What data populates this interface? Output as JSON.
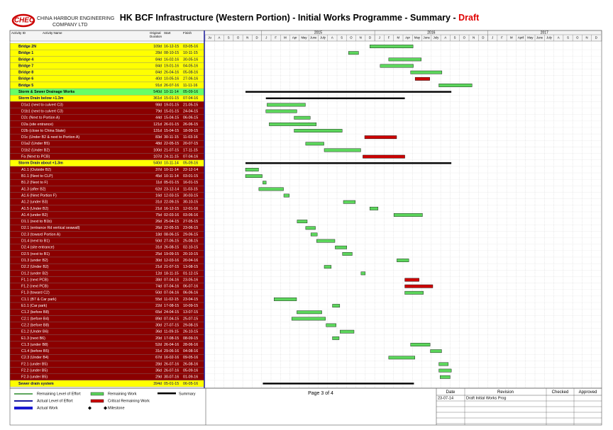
{
  "header": {
    "logo": "CHEC",
    "company_line1": "CHINA HARBOUR ENGINEERING",
    "company_line2": "COMPANY LTD",
    "title": "HK BCF Infrastructure (Western Portion) - Initial Works Programme - Summary - ",
    "status": "Draft"
  },
  "columns": {
    "id": "Activity ID",
    "name": "Activity Name",
    "duration_line1": "Original",
    "duration_line2": "Duration",
    "start": "Start",
    "finish": "Finish"
  },
  "timeline": {
    "years": [
      "2015",
      "2016",
      "2017"
    ],
    "months": [
      "Ju",
      "A",
      "S",
      "O",
      "N",
      "D",
      "J",
      "F",
      "M",
      "Apr",
      "May",
      "June",
      "July",
      "A",
      "S",
      "O",
      "N",
      "D",
      "J",
      "F",
      "M",
      "Apr",
      "May",
      "June",
      "July",
      "A",
      "S",
      "O",
      "N",
      "D",
      "J",
      "F",
      "M",
      "April",
      "May",
      "June",
      "July",
      "A",
      "S",
      "O",
      "N",
      "D"
    ]
  },
  "rows": [
    {
      "name": "Bridge 2N",
      "duration": "109d",
      "start": "16-12-15",
      "finish": "03-05-16",
      "fill": "#ffff00",
      "bar": "#5cd65c"
    },
    {
      "name": "Bridge 1",
      "duration": "28d",
      "start": "08-10-15",
      "finish": "10-11-15",
      "fill": "#ffff00",
      "bar": "#5cd65c"
    },
    {
      "name": "Bridge 4",
      "duration": "84d",
      "start": "16-02-16",
      "finish": "30-05-16",
      "fill": "#ffff00",
      "bar": "#5cd65c"
    },
    {
      "name": "Bridge 7",
      "duration": "84d",
      "start": "19-01-16",
      "finish": "04-05-16",
      "fill": "#ffff00",
      "bar": "#5cd65c"
    },
    {
      "name": "Bridge 8",
      "duration": "84d",
      "start": "26-04-16",
      "finish": "05-08-16",
      "fill": "#ffff00",
      "bar": "#5cd65c"
    },
    {
      "name": "Bridge 6",
      "duration": "40d",
      "start": "10-05-16",
      "finish": "27-06-16",
      "fill": "#ffff00",
      "bar": "#cc0000"
    },
    {
      "name": "Bridge 5",
      "duration": "91d",
      "start": "26-07-16",
      "finish": "11-11-16",
      "fill": "#ffff00",
      "bar": "#5cd65c"
    },
    {
      "name": "Storm & Sewer Drainage Works",
      "duration": "540d",
      "start": "10-11-14",
      "finish": "05-09-16",
      "fill": "#66ff66",
      "bar": "#000000"
    },
    {
      "name": "Storm Drain below +1.3m",
      "duration": "361d",
      "start": "15-01-15",
      "finish": "07-04-16",
      "fill": "#ffff00",
      "bar": "#000000"
    },
    {
      "name": "D1a1 (next to culvert C3)",
      "duration": "98d",
      "start": "19-01-15",
      "finish": "21-05-15",
      "fill": "#8b0000",
      "bar": "#5cd65c"
    },
    {
      "name": "D1b1 (next to culvert C3)",
      "duration": "79d",
      "start": "15-01-15",
      "finish": "24-04-15",
      "fill": "#8b0000",
      "bar": "#5cd65c"
    },
    {
      "name": "D2c (Next to Portion A)",
      "duration": "44d",
      "start": "15-04-15",
      "finish": "06-06-15",
      "fill": "#8b0000",
      "bar": "#5cd65c"
    },
    {
      "name": "D2a (site entrance)",
      "duration": "121d",
      "start": "26-01-15",
      "finish": "26-06-15",
      "fill": "#8b0000",
      "bar": "#5cd65c"
    },
    {
      "name": "D2b (close to China State)",
      "duration": "131d",
      "start": "15-04-15",
      "finish": "18-09-15",
      "fill": "#8b0000",
      "bar": "#5cd65c"
    },
    {
      "name": "D1c (Under B2 & next to Portion A)",
      "duration": "83d",
      "start": "30-11-15",
      "finish": "11-03-16",
      "fill": "#8b0000",
      "bar": "#cc0000"
    },
    {
      "name": "D1a2 (Under B5)",
      "duration": "48d",
      "start": "22-05-15",
      "finish": "20-07-15",
      "fill": "#8b0000",
      "bar": "#5cd65c"
    },
    {
      "name": "D1b2 (Under B2)",
      "duration": "100d",
      "start": "21-07-15",
      "finish": "17-11-15",
      "fill": "#8b0000",
      "bar": "#5cd65c"
    },
    {
      "name": "Fa (Next to PCB)",
      "duration": "107d",
      "start": "24-11-15",
      "finish": "07-04-16",
      "fill": "#8b0000",
      "bar": "#cc0000"
    },
    {
      "name": "Storm Drain about +1.3m",
      "duration": "540d",
      "start": "10-11-14",
      "finish": "05-09-16",
      "fill": "#ffff00",
      "bar": "#000000"
    },
    {
      "name": "A1.1 (Outside B2)",
      "duration": "37d",
      "start": "10-11-14",
      "finish": "22-12-14",
      "fill": "#8b0000",
      "bar": "#5cd65c"
    },
    {
      "name": "B1.1 (Next to CLP)",
      "duration": "45d",
      "start": "10-11-14",
      "finish": "03-01-15",
      "fill": "#8b0000",
      "bar": "#5cd65c"
    },
    {
      "name": "B1.2 (Next to F)",
      "duration": "11d",
      "start": "05-01-15",
      "finish": "16-01-15",
      "fill": "#8b0000",
      "bar": "#5cd65c"
    },
    {
      "name": "A1.3 (after B2)",
      "duration": "62d",
      "start": "23-12-14",
      "finish": "11-03-15",
      "fill": "#8b0000",
      "bar": "#5cd65c"
    },
    {
      "name": "A1.6 (Next Portion F)",
      "duration": "16d",
      "start": "12-03-15",
      "finish": "30-03-15",
      "fill": "#8b0000",
      "bar": "#5cd65c"
    },
    {
      "name": "A1.2 (under B3)",
      "duration": "31d",
      "start": "22-09-15",
      "finish": "30-10-15",
      "fill": "#8b0000",
      "bar": "#5cd65c"
    },
    {
      "name": "A1.5 (Under B2)",
      "duration": "21d",
      "start": "16-12-15",
      "finish": "12-01-16",
      "fill": "#8b0000",
      "bar": "#5cd65c"
    },
    {
      "name": "A1.4 (under B2)",
      "duration": "75d",
      "start": "02-03-16",
      "finish": "03-06-16",
      "fill": "#8b0000",
      "bar": "#5cd65c"
    },
    {
      "name": "D1.1 (next to B1b)",
      "duration": "26d",
      "start": "25-04-15",
      "finish": "27-05-15",
      "fill": "#8b0000",
      "bar": "#5cd65c"
    },
    {
      "name": "D2.1 (entrance Rd vertical seawall)",
      "duration": "26d",
      "start": "22-05-15",
      "finish": "23-06-15",
      "fill": "#8b0000",
      "bar": "#5cd65c"
    },
    {
      "name": "D2.3 (toward Portion A)",
      "duration": "18d",
      "start": "08-06-15",
      "finish": "29-06-15",
      "fill": "#8b0000",
      "bar": "#5cd65c"
    },
    {
      "name": "D1.4 (next to B1)",
      "duration": "50d",
      "start": "27-06-15",
      "finish": "25-08-15",
      "fill": "#8b0000",
      "bar": "#5cd65c"
    },
    {
      "name": "D2.4 (site entrance)",
      "duration": "31d",
      "start": "26-08-15",
      "finish": "02-10-15",
      "fill": "#8b0000",
      "bar": "#5cd65c"
    },
    {
      "name": "D2.5 (next to B1)",
      "duration": "25d",
      "start": "19-09-15",
      "finish": "20-10-15",
      "fill": "#8b0000",
      "bar": "#5cd65c"
    },
    {
      "name": "D1.3 (under B2)",
      "duration": "30d",
      "start": "12-03-16",
      "finish": "20-04-16",
      "fill": "#8b0000",
      "bar": "#5cd65c"
    },
    {
      "name": "D2.2 (Under B2)",
      "duration": "21d",
      "start": "21-07-15",
      "finish": "13-08-15",
      "fill": "#8b0000",
      "bar": "#5cd65c"
    },
    {
      "name": "D1.2 (under B2)",
      "duration": "12d",
      "start": "18-11-15",
      "finish": "01-12-15",
      "fill": "#8b0000",
      "bar": "#5cd65c"
    },
    {
      "name": "F1.1 (next PCB)",
      "duration": "38d",
      "start": "07-04-16",
      "finish": "23-05-16",
      "fill": "#8b0000",
      "bar": "#cc0000"
    },
    {
      "name": "F1.2 (next PCB)",
      "duration": "74d",
      "start": "07-04-16",
      "finish": "06-07-16",
      "fill": "#8b0000",
      "bar": "#cc0000"
    },
    {
      "name": "F1.3 (toward C2)",
      "duration": "50d",
      "start": "07-04-16",
      "finish": "06-06-16",
      "fill": "#8b0000",
      "bar": "#5cd65c"
    },
    {
      "name": "C1.1 (B7 & Car park)",
      "duration": "55d",
      "start": "11-02-15",
      "finish": "23-04-15",
      "fill": "#8b0000",
      "bar": "#5cd65c"
    },
    {
      "name": "E1.1 (Car park)",
      "duration": "22d",
      "start": "17-08-15",
      "finish": "10-09-15",
      "fill": "#8b0000",
      "bar": "#5cd65c"
    },
    {
      "name": "C1.2 (before B8)",
      "duration": "65d",
      "start": "24-04-15",
      "finish": "13-07-15",
      "fill": "#8b0000",
      "bar": "#5cd65c"
    },
    {
      "name": "C2.1 (before B4)",
      "duration": "89d",
      "start": "07-04-15",
      "finish": "25-07-15",
      "fill": "#8b0000",
      "bar": "#5cd65c"
    },
    {
      "name": "C2.2 (before B8)",
      "duration": "30d",
      "start": "27-07-15",
      "finish": "29-08-15",
      "fill": "#8b0000",
      "bar": "#5cd65c"
    },
    {
      "name": "E1.2 (Under B6)",
      "duration": "36d",
      "start": "11-09-15",
      "finish": "26-10-15",
      "fill": "#8b0000",
      "bar": "#5cd65c"
    },
    {
      "name": "E1.3 (next B6)",
      "duration": "20d",
      "start": "17-08-15",
      "finish": "08-09-15",
      "fill": "#8b0000",
      "bar": "#5cd65c"
    },
    {
      "name": "C1.3 (under B8)",
      "duration": "52d",
      "start": "26-04-16",
      "finish": "28-06-16",
      "fill": "#8b0000",
      "bar": "#5cd65c"
    },
    {
      "name": "C1.4 (before B5)",
      "duration": "31d",
      "start": "29-06-16",
      "finish": "04-08-16",
      "fill": "#8b0000",
      "bar": "#5cd65c"
    },
    {
      "name": "C2.3 (Under B4)",
      "duration": "67d",
      "start": "16-02-16",
      "finish": "09-05-16",
      "fill": "#8b0000",
      "bar": "#5cd65c"
    },
    {
      "name": "F2.1 (under B5)",
      "duration": "28d",
      "start": "26-07-16",
      "finish": "26-08-16",
      "fill": "#8b0000",
      "bar": "#5cd65c"
    },
    {
      "name": "F2.2 (under B5)",
      "duration": "36d",
      "start": "26-07-16",
      "finish": "05-09-16",
      "fill": "#8b0000",
      "bar": "#5cd65c"
    },
    {
      "name": "F2.3 (under B5)",
      "duration": "29d",
      "start": "30-07-16",
      "finish": "01-09-16",
      "fill": "#8b0000",
      "bar": "#5cd65c"
    },
    {
      "name": "Sewer drain system",
      "duration": "394d",
      "start": "05-01-15",
      "finish": "06-05-16",
      "fill": "#ffff00",
      "bar": "#000000"
    }
  ],
  "legend": {
    "remaining_effort": "Remaining Level of Effort",
    "actual_effort": "Actual Level of Effort",
    "actual_work": "Actual Work",
    "remaining_work": "Remaining Work",
    "critical_work": "Critical Remaining Work",
    "milestone": "Milestone",
    "summary": "Summary"
  },
  "footer": {
    "page": "Page 3 of 4",
    "revision_table": {
      "headers": [
        "Date",
        "Revision",
        "Checked",
        "Approved"
      ],
      "rows": [
        [
          "23-07-14",
          "Draft Initial Works Prog",
          "",
          ""
        ]
      ]
    }
  }
}
